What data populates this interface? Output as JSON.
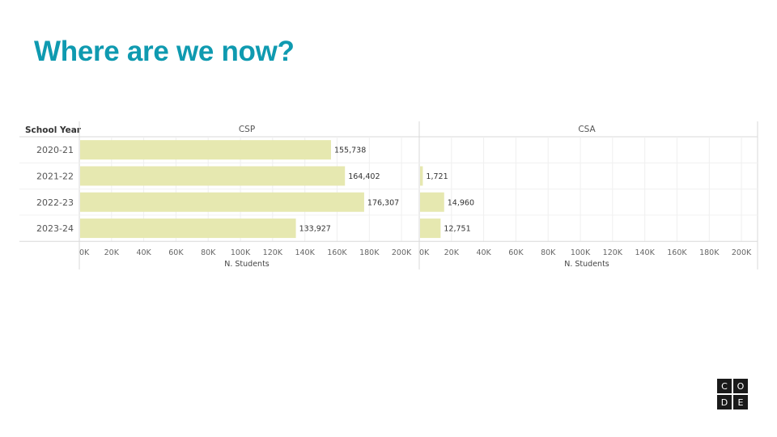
{
  "slide": {
    "title": "Where are we now?"
  },
  "logo": {
    "letters": [
      "C",
      "O",
      "D",
      "E"
    ]
  },
  "chart_data": {
    "type": "bar",
    "orientation": "horizontal",
    "row_header": "School Year",
    "categories": [
      "2020-21",
      "2021-22",
      "2022-23",
      "2023-24"
    ],
    "panels": [
      {
        "name": "CSP",
        "values": [
          155738,
          164402,
          176307,
          133927
        ],
        "value_labels": [
          "155,738",
          "164,402",
          "176,307",
          "133,927"
        ]
      },
      {
        "name": "CSA",
        "values": [
          0,
          1721,
          14960,
          12751
        ],
        "value_labels": [
          "",
          "1,721",
          "14,960",
          "12,751"
        ]
      }
    ],
    "xlabel": "N. Students",
    "xlim": [
      0,
      208000
    ],
    "xticks": [
      0,
      20000,
      40000,
      60000,
      80000,
      100000,
      120000,
      140000,
      160000,
      180000,
      200000
    ],
    "xtick_labels": [
      "0K",
      "20K",
      "40K",
      "60K",
      "80K",
      "100K",
      "120K",
      "140K",
      "160K",
      "180K",
      "200K"
    ],
    "grid": true,
    "bar_color": "#e6e8b0"
  }
}
